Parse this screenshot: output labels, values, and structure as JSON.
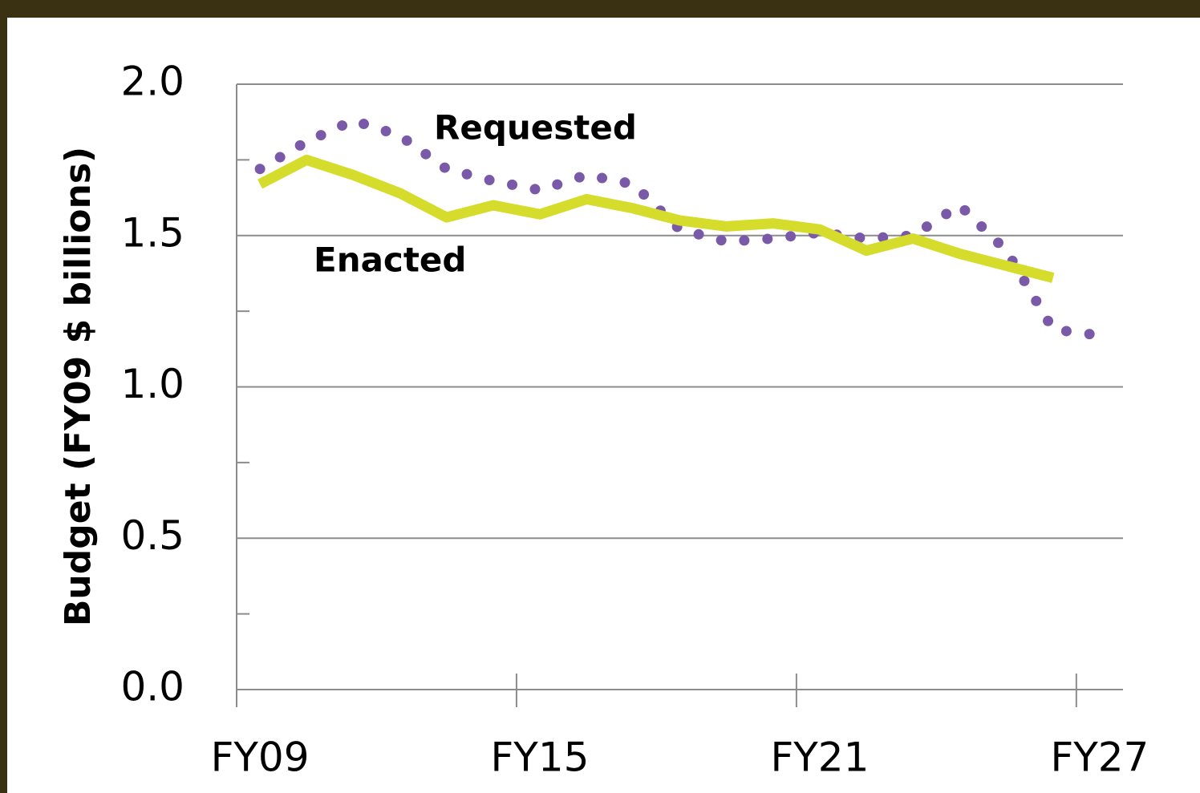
{
  "chart_data": {
    "type": "line",
    "y_label": "Budget (FY09 $ billions)",
    "categories": [
      "FY09",
      null,
      null,
      null,
      null,
      null,
      "FY15",
      null,
      null,
      null,
      null,
      null,
      "FY21",
      null,
      null,
      null,
      null,
      null,
      "FY27"
    ],
    "series": [
      {
        "name": "Requested",
        "color": "#7a5aa8",
        "style": "dotted",
        "values": [
          1.72,
          1.81,
          1.88,
          1.83,
          1.72,
          1.68,
          1.65,
          1.7,
          1.67,
          1.52,
          1.48,
          1.49,
          1.51,
          1.49,
          1.5,
          1.6,
          1.45,
          1.19,
          1.17
        ]
      },
      {
        "name": "Enacted",
        "color": "#d6dc2c",
        "style": "solid",
        "values": [
          1.67,
          1.75,
          1.7,
          1.64,
          1.56,
          1.6,
          1.57,
          1.62,
          1.59,
          1.55,
          1.53,
          1.54,
          1.52,
          1.45,
          1.49,
          1.44,
          1.4,
          1.36,
          null
        ]
      }
    ],
    "ylim": [
      0,
      2
    ],
    "yticks": [
      {
        "value": 0,
        "label": "0.0"
      },
      0.5,
      {
        "value": 1,
        "label": "1.0"
      },
      1.5,
      {
        "value": 2,
        "label": "2.0"
      }
    ],
    "yminorticks": [
      0.25,
      0.75,
      1.25,
      1.75
    ],
    "grid": true
  }
}
